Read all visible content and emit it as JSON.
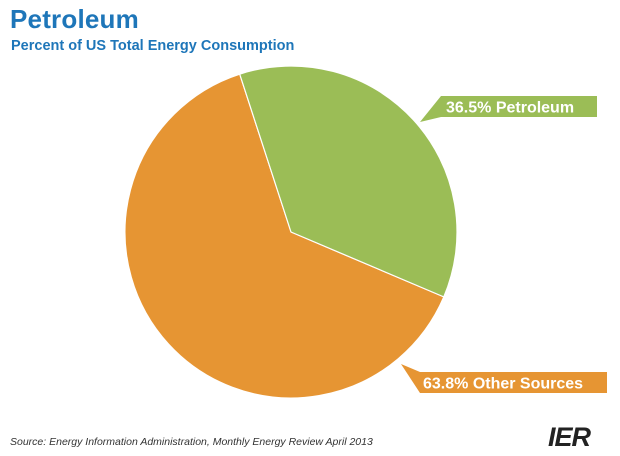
{
  "header": {
    "title": "Petroleum",
    "subtitle": "Percent of US Total Energy Consumption"
  },
  "chart_data": {
    "type": "pie",
    "title": "Petroleum",
    "subtitle": "Percent of US Total Energy Consumption",
    "slices": [
      {
        "label": "36.5% Petroleum",
        "value": 36.5,
        "color": "#9bbd56"
      },
      {
        "label": "63.8% Other Sources",
        "value": 63.8,
        "color": "#e69533"
      }
    ]
  },
  "footer": {
    "source": "Source: Energy Information Administration, Monthly Energy Review April 2013",
    "logo": "IER"
  }
}
